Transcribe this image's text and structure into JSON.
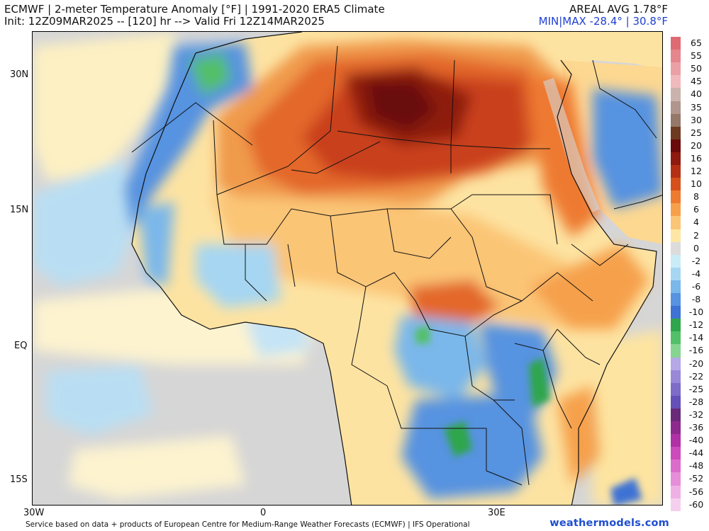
{
  "header": {
    "title_line1": "ECMWF | 2-meter Temperature Anomaly [°F] | 1991-2020 ERA5 Climate",
    "title_line2": "Init: 12Z09MAR2025 -- [120] hr --> Valid Fri 12Z14MAR2025",
    "areal_avg": "AREAL AVG 1.78°F",
    "min_max": "MIN|MAX -28.4° | 30.8°F"
  },
  "axes": {
    "lat_labels": [
      "30N",
      "15N",
      "EQ",
      "15S"
    ],
    "lon_labels": [
      "30W",
      "0",
      "30E"
    ]
  },
  "colorbar": {
    "labels": [
      "65",
      "55",
      "50",
      "45",
      "40",
      "35",
      "30",
      "25",
      "20",
      "16",
      "12",
      "10",
      "8",
      "6",
      "4",
      "2",
      "0",
      "-2",
      "-4",
      "-6",
      "-8",
      "-10",
      "-12",
      "-14",
      "-16",
      "-20",
      "-22",
      "-25",
      "-28",
      "-32",
      "-36",
      "-40",
      "-44",
      "-48",
      "-52",
      "-56",
      "-60"
    ],
    "colors": [
      "#e06a73",
      "#e5858c",
      "#eba0a5",
      "#f0babd",
      "#c9b3ac",
      "#b0968c",
      "#957869",
      "#6e3b22",
      "#6b0a0a",
      "#8e1a10",
      "#b33014",
      "#d6501c",
      "#ee7a30",
      "#f6a04c",
      "#fbc576",
      "#fee7a4",
      "#dcdcdc",
      "#c9ecf6",
      "#a6d6f2",
      "#7ab7ea",
      "#5693e0",
      "#3e72d4",
      "#2fa64c",
      "#52c068",
      "#86d492",
      "#b4a8e6",
      "#9988d8",
      "#7d6cc8",
      "#6450b8",
      "#6a2a7a",
      "#8e2a8e",
      "#b030a6",
      "#cc4aba",
      "#dc6ccc",
      "#e68ed8",
      "#efb0e4",
      "#f5cfee"
    ]
  },
  "footer": {
    "text": "Service based on data + products of European Centre for Medium-Range Weather Forecasts (ECMWF) | IFS Operational",
    "brand": "weathermodels.com"
  }
}
